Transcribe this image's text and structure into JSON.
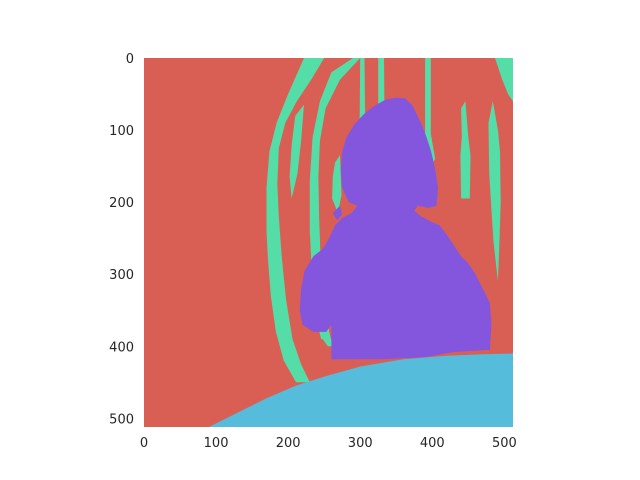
{
  "chart_data": {
    "type": "heatmap",
    "title": "",
    "xlabel": "",
    "ylabel": "",
    "xlim": [
      0,
      512
    ],
    "ylim": [
      512,
      0
    ],
    "xticks": [
      0,
      100,
      200,
      300,
      400,
      500
    ],
    "yticks": [
      0,
      100,
      200,
      300,
      400,
      500
    ],
    "grid": false,
    "legend": "none",
    "image_size": [
      512,
      512
    ],
    "classes": [
      {
        "id": "background",
        "color": "#d95f55"
      },
      {
        "id": "chair",
        "color": "#55dda8"
      },
      {
        "id": "person",
        "color": "#8456dd"
      },
      {
        "id": "table",
        "color": "#55bcdb"
      }
    ],
    "regions": [
      {
        "class": "background",
        "points": [
          [
            0,
            0
          ],
          [
            512,
            0
          ],
          [
            512,
            512
          ],
          [
            0,
            512
          ]
        ]
      },
      {
        "class": "chair",
        "points": [
          [
            222,
            0
          ],
          [
            250,
            0
          ],
          [
            232,
            30
          ],
          [
            212,
            60
          ],
          [
            196,
            90
          ],
          [
            187,
            125
          ],
          [
            185,
            175
          ],
          [
            187,
            220
          ],
          [
            191,
            275
          ],
          [
            197,
            335
          ],
          [
            206,
            390
          ],
          [
            218,
            425
          ],
          [
            230,
            450
          ],
          [
            211,
            450
          ],
          [
            194,
            420
          ],
          [
            183,
            380
          ],
          [
            176,
            330
          ],
          [
            172,
            280
          ],
          [
            170,
            240
          ],
          [
            170,
            180
          ],
          [
            174,
            130
          ],
          [
            184,
            90
          ],
          [
            200,
            50
          ]
        ]
      },
      {
        "class": "chair",
        "points": [
          [
            260,
            20
          ],
          [
            290,
            0
          ],
          [
            300,
            0
          ],
          [
            272,
            30
          ],
          [
            252,
            70
          ],
          [
            244,
            115
          ],
          [
            242,
            165
          ],
          [
            243,
            220
          ],
          [
            245,
            280
          ],
          [
            250,
            335
          ],
          [
            257,
            380
          ],
          [
            262,
            400
          ],
          [
            248,
            400
          ],
          [
            239,
            360
          ],
          [
            233,
            300
          ],
          [
            230,
            240
          ],
          [
            230,
            170
          ],
          [
            234,
            110
          ],
          [
            244,
            60
          ]
        ]
      },
      {
        "class": "chair",
        "points": [
          [
            210,
            80
          ],
          [
            222,
            65
          ],
          [
            218,
            115
          ],
          [
            213,
            160
          ],
          [
            205,
            195
          ],
          [
            202,
            165
          ],
          [
            205,
            120
          ]
        ]
      },
      {
        "class": "chair",
        "points": [
          [
            265,
            145
          ],
          [
            272,
            135
          ],
          [
            274,
            190
          ],
          [
            269,
            215
          ],
          [
            261,
            195
          ],
          [
            262,
            165
          ]
        ]
      },
      {
        "class": "chair",
        "points": [
          [
            300,
            0
          ],
          [
            306,
            0
          ],
          [
            307,
            110
          ],
          [
            312,
            140
          ],
          [
            308,
            155
          ],
          [
            302,
            140
          ],
          [
            299,
            110
          ]
        ]
      },
      {
        "class": "chair",
        "points": [
          [
            325,
            0
          ],
          [
            333,
            0
          ],
          [
            334,
            110
          ],
          [
            339,
            140
          ],
          [
            335,
            155
          ],
          [
            329,
            140
          ],
          [
            325,
            110
          ]
        ]
      },
      {
        "class": "chair",
        "points": [
          [
            390,
            0
          ],
          [
            398,
            0
          ],
          [
            398,
            105
          ],
          [
            404,
            140
          ],
          [
            398,
            150
          ],
          [
            392,
            140
          ],
          [
            390,
            105
          ]
        ]
      },
      {
        "class": "chair",
        "points": [
          [
            440,
            70
          ],
          [
            446,
            60
          ],
          [
            450,
            110
          ],
          [
            453,
            135
          ],
          [
            452,
            195
          ],
          [
            440,
            195
          ],
          [
            439,
            135
          ],
          [
            441,
            110
          ]
        ]
      },
      {
        "class": "chair",
        "points": [
          [
            487,
            0
          ],
          [
            512,
            0
          ],
          [
            512,
            60
          ],
          [
            505,
            50
          ],
          [
            497,
            30
          ]
        ]
      },
      {
        "class": "chair",
        "points": [
          [
            478,
            90
          ],
          [
            484,
            60
          ],
          [
            491,
            100
          ],
          [
            494,
            130
          ],
          [
            495,
            200
          ],
          [
            493,
            260
          ],
          [
            491,
            310
          ],
          [
            485,
            255
          ],
          [
            482,
            210
          ],
          [
            479,
            160
          ]
        ]
      },
      {
        "class": "background",
        "points": [
          [
            235,
            390
          ],
          [
            248,
            390
          ],
          [
            255,
            400
          ],
          [
            245,
            410
          ],
          [
            235,
            405
          ]
        ]
      },
      {
        "class": "person",
        "points": [
          [
            350,
            55
          ],
          [
            362,
            56
          ],
          [
            372,
            65
          ],
          [
            377,
            75
          ],
          [
            385,
            92
          ],
          [
            392,
            110
          ],
          [
            398,
            128
          ],
          [
            402,
            145
          ],
          [
            405,
            160
          ],
          [
            408,
            180
          ],
          [
            406,
            205
          ],
          [
            395,
            208
          ],
          [
            380,
            205
          ],
          [
            375,
            212
          ],
          [
            385,
            220
          ],
          [
            400,
            228
          ],
          [
            410,
            232
          ],
          [
            420,
            245
          ],
          [
            430,
            260
          ],
          [
            440,
            275
          ],
          [
            450,
            285
          ],
          [
            460,
            300
          ],
          [
            470,
            320
          ],
          [
            480,
            340
          ],
          [
            482,
            370
          ],
          [
            480,
            405
          ],
          [
            430,
            408
          ],
          [
            390,
            415
          ],
          [
            330,
            418
          ],
          [
            260,
            418
          ],
          [
            260,
            370
          ],
          [
            253,
            380
          ],
          [
            235,
            380
          ],
          [
            220,
            370
          ],
          [
            216,
            350
          ],
          [
            218,
            320
          ],
          [
            223,
            295
          ],
          [
            235,
            275
          ],
          [
            248,
            265
          ],
          [
            258,
            248
          ],
          [
            265,
            232
          ],
          [
            275,
            222
          ],
          [
            288,
            215
          ],
          [
            296,
            205
          ],
          [
            284,
            200
          ],
          [
            275,
            180
          ],
          [
            273,
            155
          ],
          [
            275,
            130
          ],
          [
            281,
            110
          ],
          [
            292,
            92
          ],
          [
            305,
            78
          ],
          [
            320,
            66
          ],
          [
            335,
            58
          ]
        ]
      },
      {
        "class": "person",
        "points": [
          [
            262,
            215
          ],
          [
            272,
            205
          ],
          [
            275,
            217
          ],
          [
            268,
            225
          ]
        ]
      },
      {
        "class": "table",
        "points": [
          [
            90,
            512
          ],
          [
            130,
            492
          ],
          [
            170,
            472
          ],
          [
            210,
            455
          ],
          [
            250,
            442
          ],
          [
            300,
            428
          ],
          [
            360,
            418
          ],
          [
            420,
            413
          ],
          [
            470,
            411
          ],
          [
            512,
            410
          ],
          [
            512,
            512
          ]
        ]
      }
    ]
  }
}
